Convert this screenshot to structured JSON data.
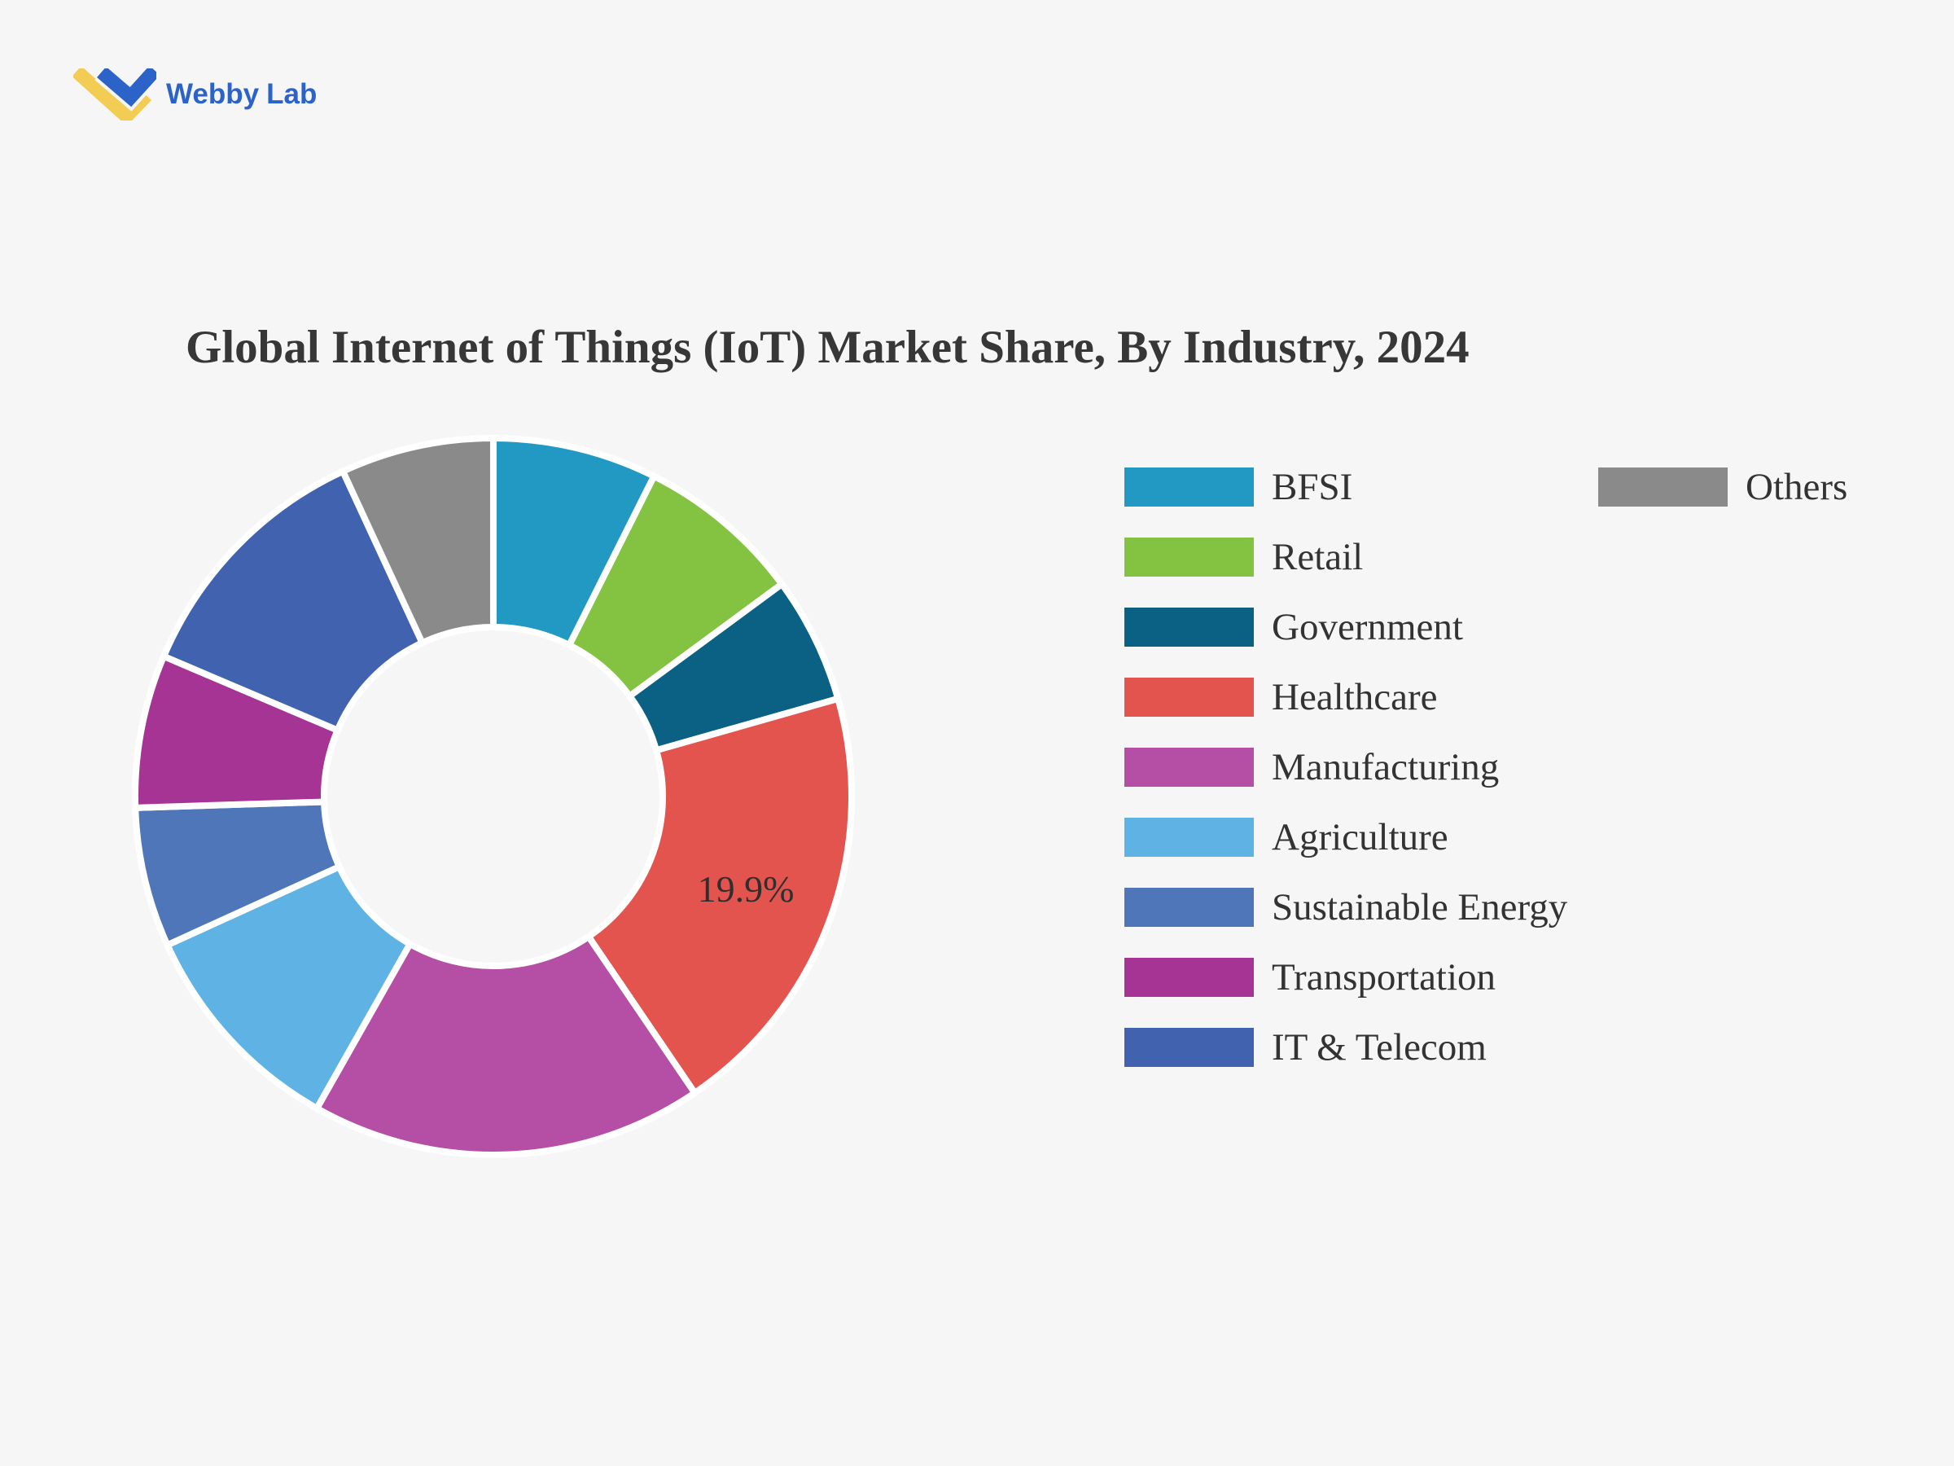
{
  "page": {
    "background_color": "#f6f6f6",
    "slice_gap_color": "#ffffff"
  },
  "logo": {
    "brand_first": "Webby",
    "brand_second": "Lab",
    "text_color": "#2B63C9",
    "icon_yellow": "#F3CC54",
    "icon_blue": "#2B63C9",
    "icon_name": "webbylab-double-checkmark-icon"
  },
  "title": "Global Internet of Things (IoT) Market Share, By Industry, 2024",
  "chart_data": {
    "type": "pie",
    "subtype": "donut",
    "title": "Global Internet of Things (IoT) Market Share, By Industry, 2024",
    "unit": "%",
    "start_angle_deg_from_12_oclock": 0,
    "direction": "clockwise",
    "inner_radius_ratio": 0.47,
    "legend_position": "right",
    "categories": [
      "BFSI",
      "Retail",
      "Government",
      "Healthcare",
      "Manufacturing",
      "Agriculture",
      "Sustainable Energy",
      "Transportation",
      "IT & Telecom",
      "Others"
    ],
    "values": [
      7.4,
      7.5,
      5.7,
      19.9,
      17.7,
      10.0,
      6.3,
      6.9,
      11.7,
      6.9
    ],
    "colors": [
      "#2199C3",
      "#83C341",
      "#0B6183",
      "#E4544F",
      "#B54FA5",
      "#5FB3E4",
      "#4E76B9",
      "#A53494",
      "#4162AF",
      "#8A8A8A"
    ],
    "display_labels": [
      "",
      "",
      "",
      "19.9%",
      "",
      "",
      "",
      "",
      "",
      ""
    ],
    "data_label_color": "#2f2f2f"
  },
  "legend": {
    "column1_categories_index": [
      0,
      1,
      2,
      3,
      4,
      5,
      6,
      7,
      8
    ],
    "column2_categories_index": [
      9
    ]
  }
}
